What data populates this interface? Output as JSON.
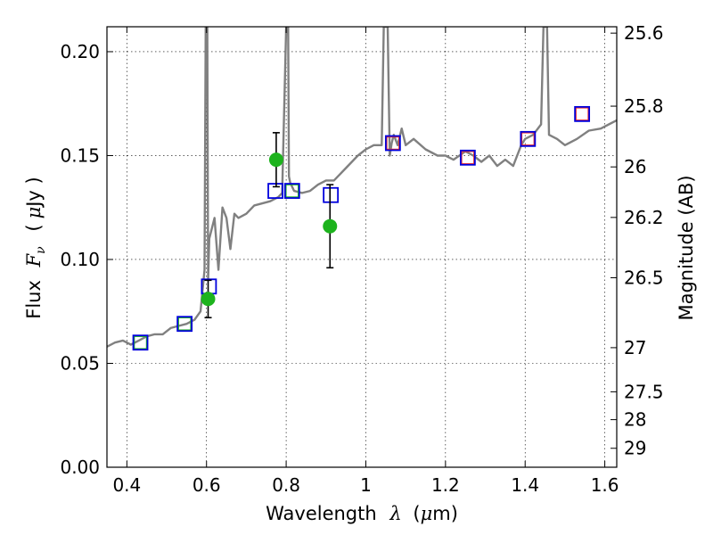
{
  "chart_data": {
    "type": "scatter",
    "xlabel_text": "Wavelength",
    "xlabel_symbol": "λ",
    "xlabel_unit_open": "(",
    "xlabel_unit_mu": "μ",
    "xlabel_unit_rest": "m)",
    "ylabel_text": "Flux",
    "ylabel_symbol": "F",
    "ylabel_sub": "ν",
    "ylabel_unit_open": "(",
    "ylabel_unit_mu": "μ",
    "ylabel_unit_rest": "Jy )",
    "y2label": "Magnitude (AB)",
    "xlim": [
      0.35,
      1.63
    ],
    "ylim": [
      0.0,
      0.212
    ],
    "xticks": [
      0.4,
      0.6,
      0.8,
      1.0,
      1.2,
      1.4,
      1.6
    ],
    "xtick_labels": [
      "0.4",
      "0.6",
      "0.8",
      "1",
      "1.2",
      "1.4",
      "1.6"
    ],
    "yticks": [
      0.0,
      0.05,
      0.1,
      0.15,
      0.2
    ],
    "ytick_labels": [
      "0.00",
      "0.05",
      "0.10",
      "0.15",
      "0.20"
    ],
    "mag_ticks": [
      25.6,
      25.8,
      26,
      26.2,
      26.5,
      27,
      27.5,
      28,
      29
    ],
    "mag_tick_labels": [
      "25.6",
      "25.8",
      "26",
      "26.2",
      "26.5",
      "27",
      "27.5",
      "28",
      "29"
    ],
    "grid": true,
    "colors": {
      "spectrum": "#808080",
      "observed": "#1db31d",
      "model_box": "#0000dd",
      "red_box": "#e83030",
      "green_box": "#1db31d"
    },
    "series": [
      {
        "name": "model spectrum",
        "kind": "line",
        "x": [
          0.35,
          0.37,
          0.39,
          0.41,
          0.43,
          0.45,
          0.47,
          0.49,
          0.51,
          0.53,
          0.55,
          0.57,
          0.585,
          0.595,
          0.598,
          0.6,
          0.602,
          0.604,
          0.607,
          0.62,
          0.63,
          0.64,
          0.65,
          0.66,
          0.67,
          0.68,
          0.7,
          0.72,
          0.74,
          0.76,
          0.78,
          0.79,
          0.8,
          0.803,
          0.805,
          0.807,
          0.81,
          0.82,
          0.84,
          0.86,
          0.88,
          0.9,
          0.92,
          0.95,
          0.98,
          1.0,
          1.02,
          1.04,
          1.045,
          1.048,
          1.052,
          1.055,
          1.06,
          1.065,
          1.07,
          1.08,
          1.09,
          1.1,
          1.12,
          1.15,
          1.18,
          1.2,
          1.22,
          1.25,
          1.27,
          1.29,
          1.31,
          1.33,
          1.35,
          1.37,
          1.39,
          1.4,
          1.42,
          1.44,
          1.446,
          1.45,
          1.455,
          1.46,
          1.48,
          1.5,
          1.53,
          1.56,
          1.59,
          1.61,
          1.63
        ],
        "y": [
          0.058,
          0.06,
          0.061,
          0.059,
          0.061,
          0.063,
          0.064,
          0.064,
          0.067,
          0.068,
          0.069,
          0.071,
          0.075,
          0.095,
          0.212,
          0.212,
          0.212,
          0.09,
          0.11,
          0.12,
          0.095,
          0.125,
          0.12,
          0.105,
          0.122,
          0.12,
          0.122,
          0.126,
          0.127,
          0.128,
          0.13,
          0.132,
          0.212,
          0.212,
          0.212,
          0.14,
          0.137,
          0.133,
          0.132,
          0.133,
          0.136,
          0.138,
          0.138,
          0.144,
          0.15,
          0.153,
          0.155,
          0.155,
          0.212,
          0.212,
          0.212,
          0.212,
          0.15,
          0.156,
          0.16,
          0.155,
          0.163,
          0.155,
          0.158,
          0.153,
          0.15,
          0.15,
          0.148,
          0.152,
          0.15,
          0.147,
          0.15,
          0.145,
          0.148,
          0.145,
          0.155,
          0.158,
          0.16,
          0.165,
          0.212,
          0.212,
          0.212,
          0.16,
          0.158,
          0.155,
          0.158,
          0.162,
          0.163,
          0.165,
          0.167
        ]
      },
      {
        "name": "observed photometry",
        "kind": "errorbar",
        "x": [
          0.604,
          0.775,
          0.91
        ],
        "y": [
          0.081,
          0.148,
          0.116
        ],
        "yerr": [
          0.009,
          0.013,
          0.02
        ]
      },
      {
        "name": "model photometry",
        "kind": "square-blue",
        "x": [
          0.434,
          0.545,
          0.606,
          0.773,
          0.815,
          0.912,
          1.068,
          1.256,
          1.407,
          1.543
        ],
        "y": [
          0.06,
          0.069,
          0.087,
          0.133,
          0.133,
          0.131,
          0.156,
          0.149,
          0.158,
          0.17
        ]
      },
      {
        "name": "inner squares (red)",
        "kind": "square-red",
        "x": [
          1.068,
          1.256,
          1.407,
          1.543
        ],
        "y": [
          0.156,
          0.149,
          0.158,
          0.17
        ]
      },
      {
        "name": "inner squares (green)",
        "kind": "square-green",
        "x": [
          0.434,
          0.545,
          0.815
        ],
        "y": [
          0.06,
          0.069,
          0.133
        ]
      }
    ]
  }
}
